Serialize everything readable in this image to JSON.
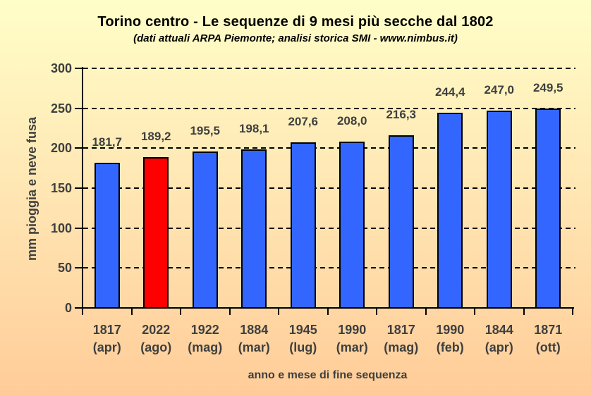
{
  "chart_data": {
    "type": "bar",
    "title": "Torino centro - Le sequenze di 9 mesi più secche dal 1802",
    "subtitle": "(dati attuali ARPA Piemonte; analisi storica SMI - www.nimbus.it)",
    "xlabel": "anno e mese di fine sequenza",
    "ylabel": "mm pioggia e neve fusa",
    "ylim": [
      0,
      300
    ],
    "ytick_step": 50,
    "ytick_labels": [
      "0",
      "50",
      "100",
      "150",
      "200",
      "250",
      "300"
    ],
    "grid": "horizontal-dashed-black",
    "legend": "none",
    "categories": [
      "1817 (apr)",
      "2022 (ago)",
      "1922 (mag)",
      "1884 (mar)",
      "1945 (lug)",
      "1990 (mar)",
      "1817 (mag)",
      "1990 (feb)",
      "1844 (apr)",
      "1871 (ott)"
    ],
    "category_years": [
      "1817",
      "2022",
      "1922",
      "1884",
      "1945",
      "1990",
      "1817",
      "1990",
      "1844",
      "1871"
    ],
    "category_months": [
      "(apr)",
      "(ago)",
      "(mag)",
      "(mar)",
      "(lug)",
      "(mar)",
      "(mag)",
      "(feb)",
      "(apr)",
      "(ott)"
    ],
    "values": [
      181.7,
      189.2,
      195.5,
      198.1,
      207.6,
      208.0,
      216.3,
      244.4,
      247.0,
      249.5
    ],
    "value_labels": [
      "181,7",
      "189,2",
      "195,5",
      "198,1",
      "207,6",
      "208,0",
      "216,3",
      "244,4",
      "247,0",
      "249,5"
    ],
    "highlight_index": 1,
    "colors": {
      "bar": "#3366FF",
      "highlight_bar": "#FF0000",
      "bar_border": "#000000",
      "label_text": "#3F3F3F",
      "title_text": "#000000",
      "background_top": "#FFFEC8",
      "background_bottom": "#FFCC98"
    }
  }
}
